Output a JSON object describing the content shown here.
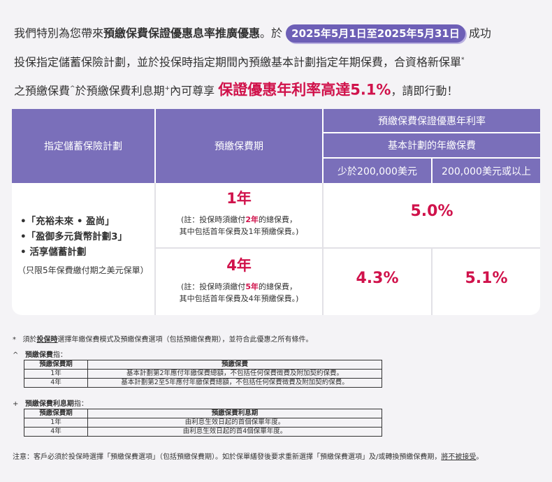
{
  "intro": {
    "line1_a": "我們特別為您帶來",
    "line1_b": "預繳保費保證優惠息率推廣優惠",
    "line1_c": "。於",
    "date_range": "2025年5月1日至2025年5月31日",
    "line1_d": "成功",
    "line2": "投保指定儲蓄保險計劃，並於投保時指定期間內預繳基本計劃指定年期保費，合資格新保單",
    "line2_sup": "*",
    "line3_a": "之預繳保費",
    "line3_sup1": "^",
    "line3_b": "於預繳保費利息期",
    "line3_sup2": "+",
    "line3_c": "內可尊享",
    "highlight": "保證優惠年利率高達5.1%",
    "line3_d": "，請即行動！"
  },
  "table": {
    "col_plan": "指定儲蓄保險計劃",
    "col_period": "預繳保費期",
    "col_rate": "預繳保費保證優惠年利率",
    "col_basic": "基本計劃的年繳保費",
    "col_low": "少於200,000美元",
    "col_high": "200,000美元或以上",
    "plans": [
      "•「充裕未來 • 盈尚」",
      "•「盈御多元貨幣計劃3」",
      "•  活享儲蓄計劃"
    ],
    "plans_note": "（只限5年保費繳付期之美元保單）",
    "term1": {
      "title": "1年",
      "note_a": "(註：投保時須繳付",
      "note_b": "2年",
      "note_c": "的總保費，",
      "note_d": "其中包括首年保費及1年預繳保費。)"
    },
    "term4": {
      "title": "4年",
      "note_a": "(註：投保時須繳付",
      "note_b": "5年",
      "note_c": "的總保費，",
      "note_d": "其中包括首年保費及4年預繳保費。)"
    },
    "rate_1yr": "5.0%",
    "rate_4yr_low": "4.3%",
    "rate_4yr_high": "5.1%"
  },
  "notes": {
    "n1_mark": "*",
    "n1_a": "須於",
    "n1_b": "投保時",
    "n1_c": "選擇年繳保費模式及預繳保費選項（包括預繳保費期），並符合此優惠之所有條件。",
    "n2_mark": "^",
    "n2_title": "預繳保費",
    "n2_suffix": "指：",
    "t1_head": [
      "預繳保費期",
      "預繳保費"
    ],
    "t1_rows": [
      [
        "1年",
        "基本計劃第2年應付年繳保費總額，不包括任何保費徵費及附加契約保費。"
      ],
      [
        "4年",
        "基本計劃第2至5年應付年繳保費總額，不包括任何保費徵費及附加契約保費。"
      ]
    ],
    "n3_mark": "+",
    "n3_title": "預繳保費利息期",
    "n3_suffix": "指：",
    "t2_head": [
      "預繳保費期",
      "預繳保費利息期"
    ],
    "t2_rows": [
      [
        "1年",
        "由利息生效日起的首個保單年度。"
      ],
      [
        "4年",
        "由利息生效日起的首4個保單年度。"
      ]
    ],
    "footer_a": "注意：客戶必須於投保時選擇「預繳保費選項」（包括預繳保費期）。如於保單繕發後要求重新選擇「預繳保費選項」及/或轉換預繳保費期，",
    "footer_b": "將不被接受",
    "footer_c": "。"
  }
}
